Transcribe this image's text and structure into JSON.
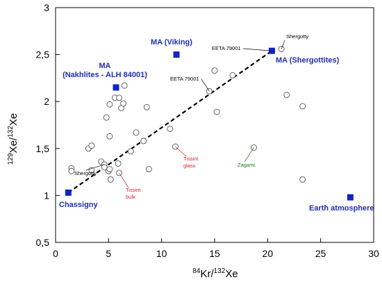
{
  "chart_data": {
    "type": "scatter",
    "title": "",
    "xlim": [
      0,
      30
    ],
    "ylim": [
      0.5,
      3
    ],
    "x_ticks": [
      {
        "value": 0,
        "label": "0"
      },
      {
        "value": 5,
        "label": "5"
      },
      {
        "value": 10,
        "label": "10"
      },
      {
        "value": 15,
        "label": "15"
      },
      {
        "value": 20,
        "label": "20"
      },
      {
        "value": 25,
        "label": "25"
      },
      {
        "value": 30,
        "label": "30"
      }
    ],
    "y_ticks": [
      {
        "value": 0.5,
        "label": "0,5"
      },
      {
        "value": 1,
        "label": "1"
      },
      {
        "value": 1.5,
        "label": "1,5"
      },
      {
        "value": 2,
        "label": "2"
      },
      {
        "value": 2.5,
        "label": "2,5"
      },
      {
        "value": 3,
        "label": "3"
      }
    ],
    "xlabel": {
      "sup1": "84",
      "base1": "Kr/",
      "sup2": "132",
      "base2": "Xe"
    },
    "ylabel": {
      "sup1": "129",
      "base1": "Xe/",
      "sup2": "132",
      "base2": "Xe"
    },
    "grid": false,
    "series": [
      {
        "marker": "open-circle",
        "points": [
          [
            1.5,
            1.29
          ],
          [
            1.5,
            1.26
          ],
          [
            3.1,
            1.5
          ],
          [
            3.4,
            1.53
          ],
          [
            3.4,
            1.27
          ],
          [
            4.3,
            1.36
          ],
          [
            4.6,
            1.33
          ],
          [
            4.6,
            1.3
          ],
          [
            4.8,
            1.83
          ],
          [
            5.0,
            1.26
          ],
          [
            5.1,
            1.28
          ],
          [
            5.1,
            1.97
          ],
          [
            5.1,
            1.63
          ],
          [
            5.2,
            1.17
          ],
          [
            5.6,
            2.04
          ],
          [
            5.9,
            1.34
          ],
          [
            6.0,
            1.24
          ],
          [
            6.0,
            2.04
          ],
          [
            6.2,
            1.93
          ],
          [
            6.4,
            1.98
          ],
          [
            6.5,
            2.17
          ],
          [
            7.1,
            1.47
          ],
          [
            7.6,
            1.67
          ],
          [
            8.3,
            1.58
          ],
          [
            8.6,
            1.94
          ],
          [
            8.8,
            1.28
          ],
          [
            10.8,
            1.71
          ],
          [
            11.3,
            1.52
          ],
          [
            14.5,
            2.11
          ],
          [
            15.0,
            2.33
          ],
          [
            15.2,
            1.89
          ],
          [
            16.7,
            2.28
          ],
          [
            18.7,
            1.51
          ],
          [
            21.3,
            2.56
          ],
          [
            21.8,
            2.07
          ],
          [
            23.3,
            1.95
          ],
          [
            23.3,
            1.17
          ]
        ]
      },
      {
        "marker": "filled-square",
        "color": "#1222cc",
        "points": [
          {
            "name": "Chassigny",
            "x": 1.2,
            "y": 1.03
          },
          {
            "name": "MA (Nakhlites - ALH 84001)",
            "x": 5.7,
            "y": 2.15
          },
          {
            "name": "MA (Viking)",
            "x": 11.4,
            "y": 2.5
          },
          {
            "name": "MA (Shergottites)",
            "x": 20.4,
            "y": 2.54
          },
          {
            "name": "Earth atmosphere",
            "x": 27.8,
            "y": 0.98
          }
        ]
      }
    ],
    "trend_line": {
      "style": "dashed",
      "color": "#000000",
      "from": [
        1.2,
        1.03
      ],
      "to": [
        20.4,
        2.54
      ]
    },
    "annotations": [
      {
        "text": "MA (Viking)",
        "color": "#1f2fb0",
        "style": "bold"
      },
      {
        "text": "MA",
        "color": "#1f2fb0",
        "style": "bold"
      },
      {
        "text": "(Nakhlites - ALH 84001)",
        "color": "#1f2fb0",
        "style": "bold"
      },
      {
        "text": "MA (Shergottites)",
        "color": "#1f2fb0",
        "style": "bold"
      },
      {
        "text": "Chassigny",
        "color": "#1f2fb0",
        "style": "bold"
      },
      {
        "text": "Earth atmosphere",
        "color": "#1f2fb0",
        "style": "bold"
      },
      {
        "text": "Shergotty",
        "color": "#000000",
        "style": "small",
        "points_to": [
          21.3,
          2.56
        ]
      },
      {
        "text": "EETA 79001",
        "color": "#000000",
        "style": "small",
        "points_to": [
          20.4,
          2.54
        ]
      },
      {
        "text": "EETA 79001",
        "color": "#000000",
        "style": "small",
        "points_to": [
          14.5,
          2.11
        ]
      },
      {
        "text": "Shergotty",
        "color": "#000000",
        "style": "small",
        "points_to": [
          4.6,
          1.33
        ]
      },
      {
        "text": "Tissint",
        "color": "#e02020",
        "style": "small",
        "points_to": [
          6.0,
          1.24
        ]
      },
      {
        "text": "bulk",
        "color": "#e02020",
        "style": "small"
      },
      {
        "text": "Tissint",
        "color": "#e02020",
        "style": "small",
        "points_to": [
          11.3,
          1.52
        ]
      },
      {
        "text": "glass",
        "color": "#e02020",
        "style": "small"
      },
      {
        "text": "Zagami",
        "color": "#1a7a1a",
        "style": "small",
        "points_to": [
          18.7,
          1.51
        ]
      }
    ]
  }
}
